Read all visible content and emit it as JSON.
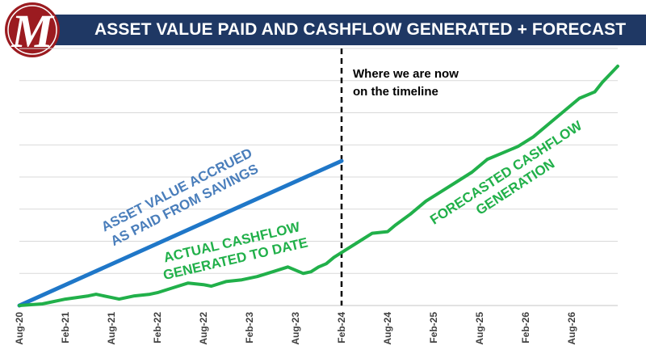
{
  "header": {
    "title": "ASSET VALUE PAID AND CASHFLOW GENERATED + FORECAST",
    "logo_letter": "M"
  },
  "colors": {
    "title_bar": "#1f3864",
    "logo_red": "#9b1b20",
    "asset_line": "#1f77c8",
    "cashflow_line": "#21b04a",
    "gridline": "#d9d9d9",
    "annotation_line": "#000000"
  },
  "chart_data": {
    "type": "line",
    "title": "ASSET VALUE PAID AND CASHFLOW GENERATED + FORECAST",
    "xlabel": "",
    "ylabel": "",
    "x_tick_labels": [
      "Aug-20",
      "Feb-21",
      "Aug-21",
      "Feb-22",
      "Aug-22",
      "Feb-23",
      "Aug-23",
      "Feb-24",
      "Aug-24",
      "Feb-25",
      "Aug-25",
      "Feb-26",
      "Aug-26"
    ],
    "x_unit": "months since Aug-20",
    "x_range": [
      0,
      78
    ],
    "y_range": [
      0,
      8
    ],
    "y_tick_labels_shown": false,
    "grid": "horizontal",
    "divider": {
      "x": 42,
      "label_lines": [
        "Where we are now",
        "on the timeline"
      ]
    },
    "series": [
      {
        "key": "asset",
        "label_lines": [
          "ASSET VALUE ACCRUED",
          "AS PAID FROM SAVINGS"
        ],
        "points": [
          [
            0,
            0.0
          ],
          [
            42,
            4.5
          ]
        ]
      },
      {
        "key": "actual",
        "label_lines": [
          "ACTUAL CASHFLOW",
          "GENERATED TO DATE"
        ],
        "points": [
          [
            0,
            0.0
          ],
          [
            3,
            0.05
          ],
          [
            6,
            0.2
          ],
          [
            9,
            0.3
          ],
          [
            10,
            0.35
          ],
          [
            12,
            0.25
          ],
          [
            13,
            0.2
          ],
          [
            15,
            0.3
          ],
          [
            17,
            0.35
          ],
          [
            18,
            0.4
          ],
          [
            20,
            0.55
          ],
          [
            22,
            0.7
          ],
          [
            24,
            0.65
          ],
          [
            25,
            0.6
          ],
          [
            27,
            0.75
          ],
          [
            29,
            0.8
          ],
          [
            31,
            0.9
          ],
          [
            33,
            1.05
          ],
          [
            35,
            1.2
          ],
          [
            37,
            1.0
          ],
          [
            38,
            1.05
          ],
          [
            39,
            1.2
          ],
          [
            40,
            1.3
          ],
          [
            41,
            1.5
          ],
          [
            42,
            1.65
          ]
        ]
      },
      {
        "key": "forecast",
        "label_lines": [
          "FORECASTED CASHFLOW",
          "GENERATION"
        ],
        "points": [
          [
            42,
            1.65
          ],
          [
            44,
            1.95
          ],
          [
            46,
            2.25
          ],
          [
            48,
            2.3
          ],
          [
            49,
            2.5
          ],
          [
            51,
            2.85
          ],
          [
            53,
            3.25
          ],
          [
            55,
            3.55
          ],
          [
            57,
            3.85
          ],
          [
            59,
            4.15
          ],
          [
            61,
            4.55
          ],
          [
            63,
            4.75
          ],
          [
            65,
            4.95
          ],
          [
            67,
            5.25
          ],
          [
            69,
            5.65
          ],
          [
            71,
            6.05
          ],
          [
            73,
            6.45
          ],
          [
            75,
            6.65
          ],
          [
            76,
            6.95
          ],
          [
            78,
            7.45
          ]
        ]
      }
    ]
  }
}
